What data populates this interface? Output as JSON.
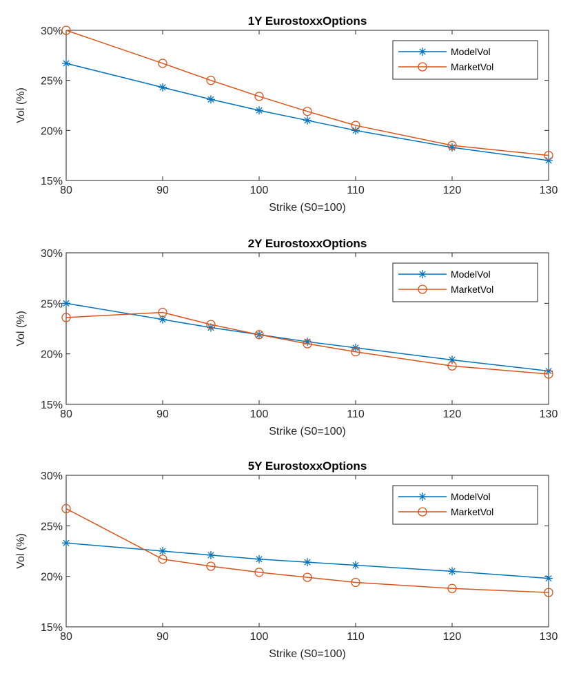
{
  "colors": {
    "model": "#0072BD",
    "market": "#D95319",
    "axis": "#262626",
    "background": "#ffffff"
  },
  "chart_data": [
    {
      "type": "line",
      "title": "1Y EurostoxxOptions",
      "xlabel": "Strike (S0=100)",
      "ylabel": "Vol (%)",
      "xlim": [
        80,
        130
      ],
      "ylim": [
        15,
        30
      ],
      "xticks": [
        "80",
        "90",
        "100",
        "110",
        "120",
        "130"
      ],
      "yticks": [
        "15%",
        "20%",
        "25%",
        "30%"
      ],
      "x": [
        80,
        90,
        95,
        100,
        105,
        110,
        120,
        130
      ],
      "legend": "top-right",
      "series": [
        {
          "name": "ModelVol",
          "marker": "asterisk",
          "values": [
            26.7,
            24.3,
            23.1,
            22.0,
            21.0,
            20.0,
            18.3,
            17.0
          ]
        },
        {
          "name": "MarketVol",
          "marker": "circle",
          "values": [
            30.0,
            26.7,
            25.0,
            23.4,
            21.9,
            20.5,
            18.5,
            17.5
          ]
        }
      ]
    },
    {
      "type": "line",
      "title": "2Y EurostoxxOptions",
      "xlabel": "Strike (S0=100)",
      "ylabel": "Vol (%)",
      "xlim": [
        80,
        130
      ],
      "ylim": [
        15,
        30
      ],
      "xticks": [
        "80",
        "90",
        "100",
        "110",
        "120",
        "130"
      ],
      "yticks": [
        "15%",
        "20%",
        "25%",
        "30%"
      ],
      "x": [
        80,
        90,
        95,
        100,
        105,
        110,
        120,
        130
      ],
      "legend": "top-right",
      "series": [
        {
          "name": "ModelVol",
          "marker": "asterisk",
          "values": [
            25.0,
            23.4,
            22.6,
            21.9,
            21.2,
            20.6,
            19.4,
            18.3
          ]
        },
        {
          "name": "MarketVol",
          "marker": "circle",
          "values": [
            23.6,
            24.1,
            22.9,
            21.9,
            21.0,
            20.2,
            18.8,
            18.0
          ]
        }
      ]
    },
    {
      "type": "line",
      "title": "5Y EurostoxxOptions",
      "xlabel": "Strike (S0=100)",
      "ylabel": "Vol (%)",
      "xlim": [
        80,
        130
      ],
      "ylim": [
        15,
        30
      ],
      "xticks": [
        "80",
        "90",
        "100",
        "110",
        "120",
        "130"
      ],
      "yticks": [
        "15%",
        "20%",
        "25%",
        "30%"
      ],
      "x": [
        80,
        90,
        95,
        100,
        105,
        110,
        120,
        130
      ],
      "legend": "top-right",
      "series": [
        {
          "name": "ModelVol",
          "marker": "asterisk",
          "values": [
            23.3,
            22.5,
            22.1,
            21.7,
            21.4,
            21.1,
            20.5,
            19.8
          ]
        },
        {
          "name": "MarketVol",
          "marker": "circle",
          "values": [
            26.7,
            21.7,
            21.0,
            20.4,
            19.9,
            19.4,
            18.8,
            18.4
          ]
        }
      ]
    }
  ]
}
